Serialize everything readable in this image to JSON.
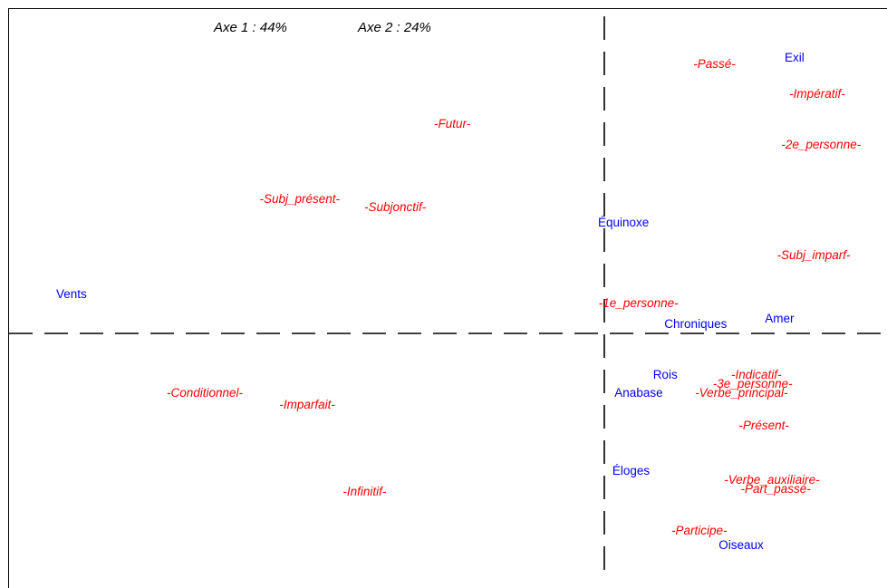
{
  "chart_data": {
    "type": "scatter",
    "title": {
      "axis1_label": "Axe 1 : 44%",
      "axis2_label": "Axe 2 : 24%"
    },
    "xlabel": "",
    "ylabel": "",
    "grid": false,
    "colors": {
      "variables": "#ff0000",
      "observations": "#0000ff",
      "axes": "#000000"
    },
    "series": [
      {
        "points": [
          {
            "label": "-Passé-",
            "x": 0.29,
            "y": 0.9
          },
          {
            "label": "-Impératif-",
            "x": 0.56,
            "y": 0.8
          },
          {
            "label": "-Futur-",
            "x": -0.4,
            "y": 0.7
          },
          {
            "label": "-2e_personne-",
            "x": 0.57,
            "y": 0.63
          },
          {
            "label": "-Subj_présent-",
            "x": -0.8,
            "y": 0.45
          },
          {
            "label": "-Subjonctif-",
            "x": -0.55,
            "y": 0.42
          },
          {
            "label": "-Subj_imparf-",
            "x": 0.55,
            "y": 0.26
          },
          {
            "label": "-1e_personne-",
            "x": 0.09,
            "y": 0.1
          },
          {
            "label": "-Indicatif-",
            "x": 0.4,
            "y": -0.14
          },
          {
            "label": "-3e_personne-",
            "x": 0.39,
            "y": -0.17
          },
          {
            "label": "-Verbe_principal-",
            "x": 0.36,
            "y": -0.2
          },
          {
            "label": "-Conditionnel-",
            "x": -1.05,
            "y": -0.2
          },
          {
            "label": "-Imparfait-",
            "x": -0.78,
            "y": -0.24
          },
          {
            "label": "-Présent-",
            "x": 0.42,
            "y": -0.31
          },
          {
            "label": "-Verbe_auxiliaire-",
            "x": 0.44,
            "y": -0.49
          },
          {
            "label": "-Part_passé-",
            "x": 0.45,
            "y": -0.52
          },
          {
            "label": "-Infinitif-",
            "x": -0.63,
            "y": -0.53
          },
          {
            "label": "-Participe-",
            "x": 0.25,
            "y": -0.66
          }
        ]
      },
      {
        "points": [
          {
            "label": "Exil",
            "x": 0.5,
            "y": 0.92
          },
          {
            "label": "Équinoxe",
            "x": 0.05,
            "y": 0.37
          },
          {
            "label": "Vents",
            "x": -1.4,
            "y": 0.13
          },
          {
            "label": "Amer",
            "x": 0.46,
            "y": 0.05
          },
          {
            "label": "Chroniques",
            "x": 0.24,
            "y": 0.03
          },
          {
            "label": "Rois",
            "x": 0.16,
            "y": -0.14
          },
          {
            "label": "Anabase",
            "x": 0.09,
            "y": -0.2
          },
          {
            "label": "Éloges",
            "x": 0.07,
            "y": -0.46
          },
          {
            "label": "Oiseaux",
            "x": 0.36,
            "y": -0.71
          }
        ]
      }
    ]
  }
}
